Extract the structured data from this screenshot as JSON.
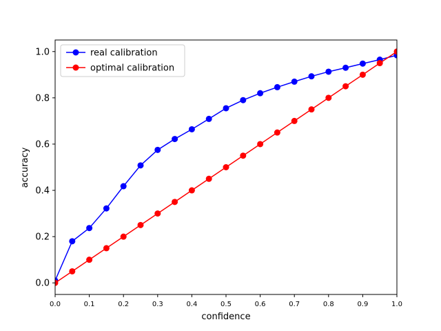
{
  "chart_data": {
    "type": "line",
    "xlabel": "confidence",
    "ylabel": "accuracy",
    "xlim": [
      0.0,
      1.0
    ],
    "ylim": [
      -0.05,
      1.05
    ],
    "xticks": [
      "0.0",
      "0.1",
      "0.2",
      "0.3",
      "0.4",
      "0.5",
      "0.6",
      "0.7",
      "0.8",
      "0.9",
      "1.0"
    ],
    "yticks": [
      "0.0",
      "0.2",
      "0.4",
      "0.6",
      "0.8",
      "1.0"
    ],
    "grid": false,
    "legend_position": "top-left",
    "x": [
      0.0,
      0.05,
      0.1,
      0.15,
      0.2,
      0.25,
      0.3,
      0.35,
      0.4,
      0.45,
      0.5,
      0.55,
      0.6,
      0.65,
      0.7,
      0.75,
      0.8,
      0.85,
      0.9,
      0.95,
      1.0
    ],
    "series": [
      {
        "name": "real calibration",
        "color": "#0000ff",
        "values": [
          0.01,
          0.18,
          0.237,
          0.322,
          0.418,
          0.508,
          0.575,
          0.622,
          0.664,
          0.709,
          0.755,
          0.79,
          0.82,
          0.846,
          0.87,
          0.893,
          0.913,
          0.93,
          0.948,
          0.965,
          0.984
        ]
      },
      {
        "name": "optimal calibration",
        "color": "#ff0000",
        "values": [
          0.0,
          0.05,
          0.1,
          0.15,
          0.2,
          0.25,
          0.3,
          0.35,
          0.4,
          0.45,
          0.5,
          0.55,
          0.6,
          0.65,
          0.7,
          0.75,
          0.8,
          0.85,
          0.9,
          0.95,
          1.0
        ]
      }
    ]
  }
}
